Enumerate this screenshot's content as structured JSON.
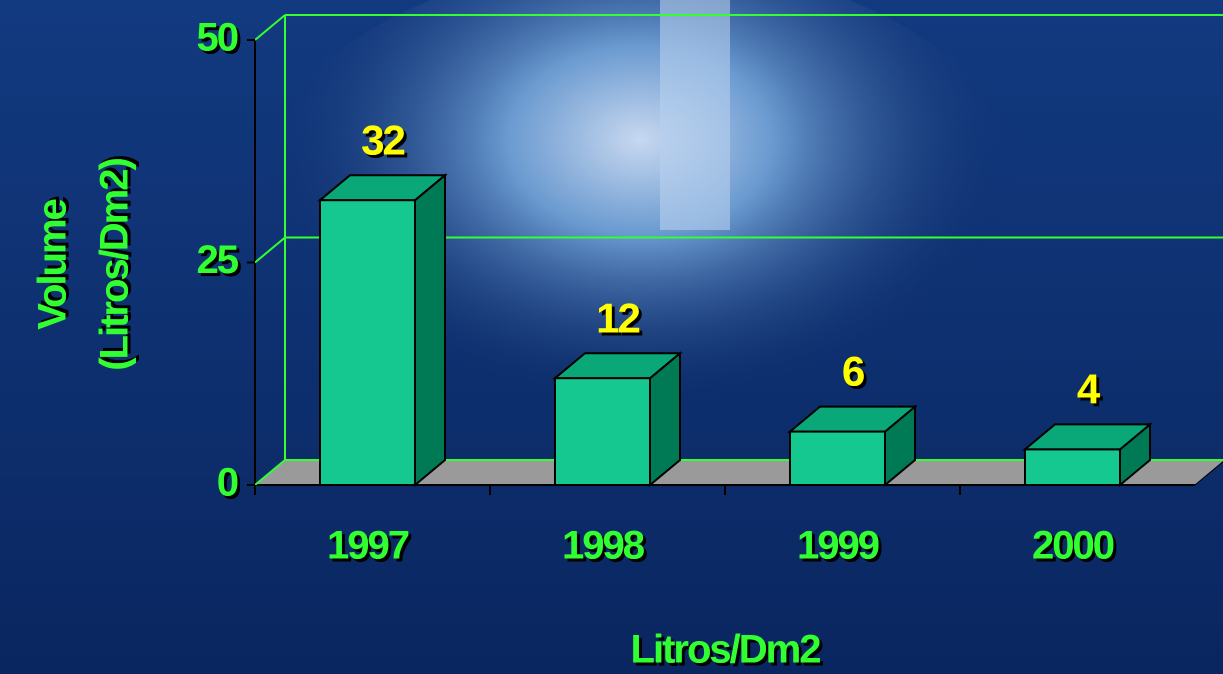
{
  "chart_data": {
    "type": "bar3d",
    "categories": [
      "1997",
      "1998",
      "1999",
      "2000"
    ],
    "values": [
      32,
      12,
      6,
      4
    ],
    "color": "#14c890",
    "ylim": [
      0,
      50
    ],
    "yticks": [
      0,
      25,
      50
    ],
    "grid": true,
    "y_label": [
      "Volume",
      "(Litros/Dm2)"
    ],
    "x_label": "Litros/Dm2"
  }
}
